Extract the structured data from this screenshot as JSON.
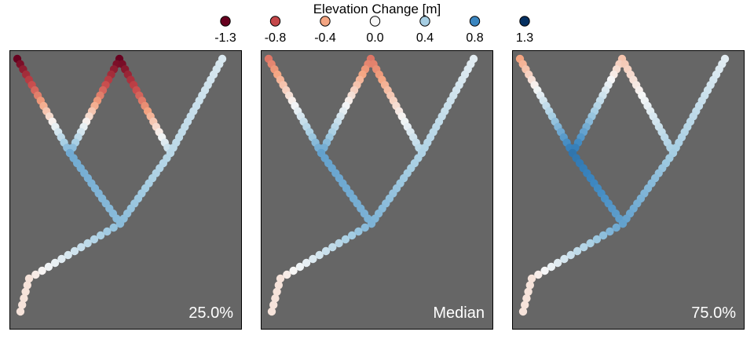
{
  "chart_data": {
    "type": "scatter",
    "legend": {
      "title": "Elevation Change [m]",
      "placement": "top",
      "entries": [
        {
          "label": "-1.3",
          "value": -1.3,
          "color": "#67001f"
        },
        {
          "label": "-0.8",
          "value": -0.8,
          "color": "#c5474a"
        },
        {
          "label": "-0.4",
          "value": -0.4,
          "color": "#f4a582"
        },
        {
          "label": "0.0",
          "value": 0.0,
          "color": "#f7f7f7"
        },
        {
          "label": "0.4",
          "value": 0.4,
          "color": "#a6cee3"
        },
        {
          "label": "0.8",
          "value": 0.8,
          "color": "#3b86c0"
        },
        {
          "label": "1.3",
          "value": 1.3,
          "color": "#053061"
        }
      ]
    },
    "panel_background": "#666666",
    "panels": [
      {
        "label": "25.0%",
        "top_ends": {
          "left": -1.3,
          "middle": -1.3,
          "right": 0.15
        },
        "lower_left_junction": 0.6,
        "lower_right_junction": 0.3,
        "bottom_junction": 0.5,
        "tail": -0.1
      },
      {
        "label": "Median",
        "top_ends": {
          "left": -0.6,
          "middle": -0.6,
          "right": 0.1
        },
        "lower_left_junction": 0.65,
        "lower_right_junction": 0.35,
        "bottom_junction": 0.55,
        "tail": -0.1
      },
      {
        "label": "75.0%",
        "top_ends": {
          "left": -0.4,
          "middle": -0.25,
          "right": 0.1
        },
        "lower_left_junction": 0.9,
        "lower_right_junction": 0.4,
        "bottom_junction": 0.65,
        "tail": -0.1
      }
    ]
  }
}
